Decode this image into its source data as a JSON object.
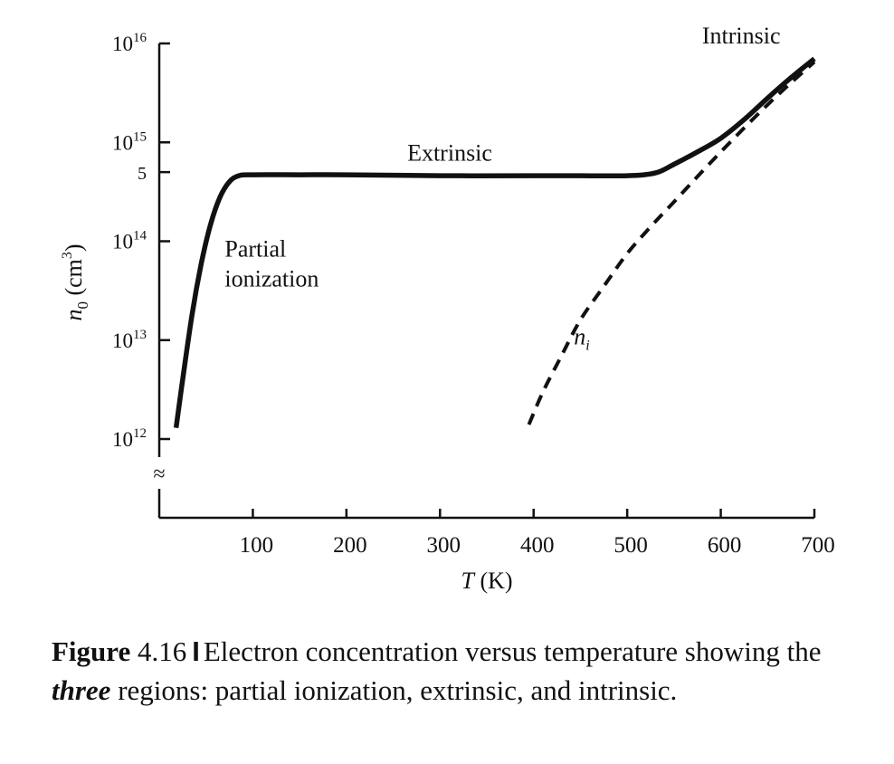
{
  "chart_data": {
    "type": "line",
    "xlabel": "T (K)",
    "xlabel_var": "T",
    "xlabel_unit": "(K)",
    "ylabel": "n0 (cm−3)",
    "ylabel_var": "n",
    "ylabel_sub": "0",
    "ylabel_unit": "(cm",
    "ylabel_exp": "3",
    "ylabel_close": ")",
    "y_scale": "log",
    "xlim": [
      0,
      700
    ],
    "ylim": [
      1000000000000.0,
      1e+16
    ],
    "x_ticks": [
      "100",
      "200",
      "300",
      "400",
      "500",
      "600",
      "700"
    ],
    "x_tick_values": [
      100,
      200,
      300,
      400,
      500,
      600,
      700
    ],
    "y_ticks": [
      {
        "base": "10",
        "exp": "12",
        "value": 1000000000000.0
      },
      {
        "base": "10",
        "exp": "13",
        "value": 10000000000000.0
      },
      {
        "base": "10",
        "exp": "14",
        "value": 100000000000000.0
      },
      {
        "base": "10",
        "exp": "15",
        "value": 1000000000000000.0
      },
      {
        "base": "10",
        "exp": "16",
        "value": 1e+16
      }
    ],
    "y_minor_tick": {
      "label": "5",
      "value": 500000000000000.0
    },
    "axis_break": "≈",
    "series": [
      {
        "style": "solid",
        "x": [
          18,
          25,
          35,
          45,
          55,
          65,
          75,
          85,
          100,
          150,
          200,
          300,
          400,
          450,
          500,
          530,
          550,
          575,
          600,
          625,
          650,
          675,
          700
        ],
        "y": [
          1300000000000.0,
          4000000000000.0,
          18000000000000.0,
          60000000000000.0,
          150000000000000.0,
          280000000000000.0,
          400000000000000.0,
          460000000000000.0,
          470000000000000.0,
          470000000000000.0,
          470000000000000.0,
          460000000000000.0,
          460000000000000.0,
          460000000000000.0,
          460000000000000.0,
          490000000000000.0,
          600000000000000.0,
          800000000000000.0,
          1100000000000000.0,
          1700000000000000.0,
          2800000000000000.0,
          4500000000000000.0,
          7000000000000000.0
        ]
      },
      {
        "name": "n_i",
        "style": "dashed",
        "x": [
          395,
          410,
          430,
          450,
          475,
          500,
          525,
          550,
          575,
          600,
          625,
          650,
          675,
          700
        ],
        "y": [
          1400000000000.0,
          3000000000000.0,
          7000000000000.0,
          16000000000000.0,
          35000000000000.0,
          75000000000000.0,
          140000000000000.0,
          250000000000000.0,
          450000000000000.0,
          800000000000000.0,
          1400000000000000.0,
          2400000000000000.0,
          4000000000000000.0,
          6500000000000000.0
        ]
      }
    ],
    "annotations": [
      {
        "text": "Partial",
        "x": 70,
        "y": 70000000000000.0
      },
      {
        "text": "ionization",
        "x": 70,
        "y": 35000000000000.0
      },
      {
        "text": "Extrinsic",
        "x": 265,
        "y": 650000000000000.0
      },
      {
        "text": "Intrinsic",
        "x": 580,
        "y": 1e+16
      },
      {
        "text_var": "n",
        "text_sub": "i",
        "x": 443,
        "y": 9000000000000.0
      }
    ]
  },
  "caption": {
    "label_bold": "Figure",
    "number": "4.16",
    "separator": "I",
    "text_1": "Electron concentration versus temperature showing the ",
    "emphasis": "three",
    "text_2": " regions: partial ionization, extrinsic, and intrinsic."
  }
}
